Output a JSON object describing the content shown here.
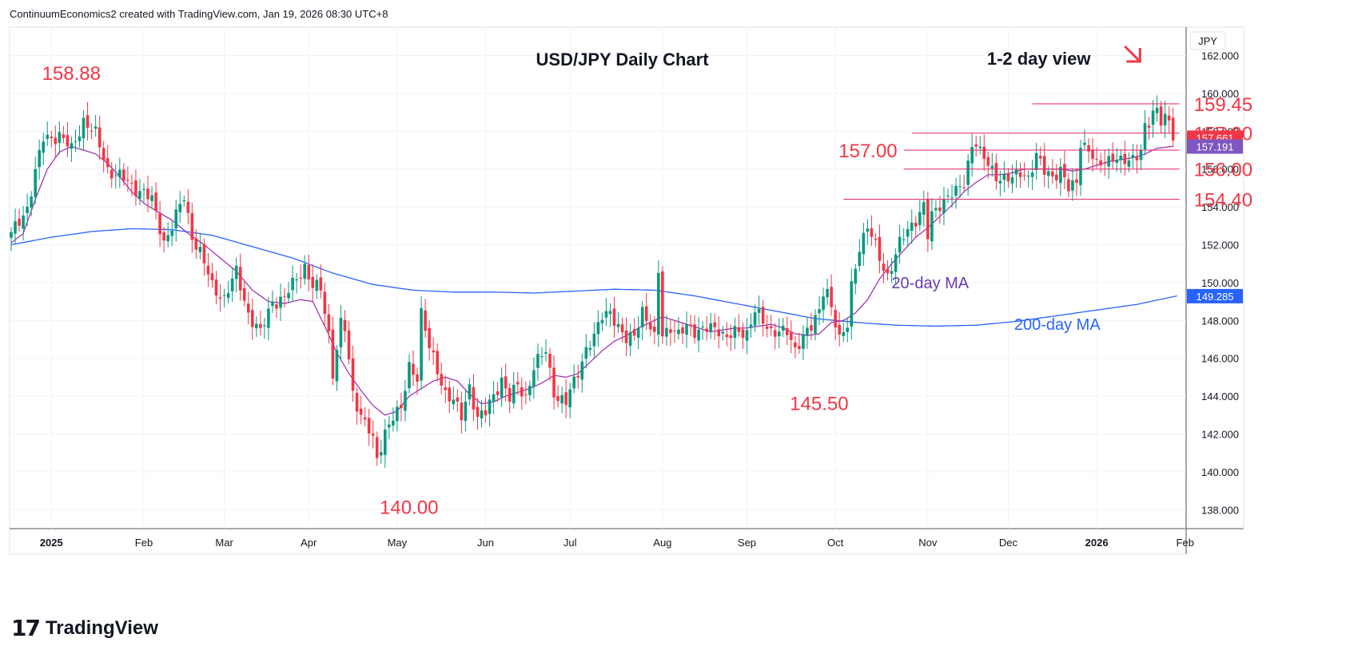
{
  "header": {
    "text": "ContinuumEconomics2 created with TradingView.com, Jan 19, 2026 08:30 UTC+8"
  },
  "branding": {
    "logo_text": "TradingView",
    "logo_icon": "tradingview-logo-icon"
  },
  "chart_data": {
    "type": "candlestick",
    "title": "USD/JPY Daily Chart",
    "view_label": "1-2 day view",
    "view_arrow": "arrow-down-right-icon",
    "currency": "JPY",
    "colors": {
      "up": "#089981",
      "down": "#f23645",
      "ma20": "#9c27b0",
      "ma200": "#2962ff",
      "annotation": "#f23645",
      "ma20_label": "#673ab7",
      "ma200_label": "#2962ff",
      "last_price_bg": "#f23645",
      "ma20_badge_bg": "#7e57c2",
      "ma200_badge_bg": "#2962ff"
    },
    "y_axis": {
      "min": 137,
      "max": 163.5,
      "ticks": [
        "162.000",
        "160.000",
        "158.000",
        "156.000",
        "154.000",
        "152.000",
        "150.000",
        "148.000",
        "146.000",
        "144.000",
        "142.000",
        "140.000",
        "138.000"
      ]
    },
    "x_axis": {
      "labels": [
        {
          "text": "2025",
          "bold": true,
          "idx": 10
        },
        {
          "text": "Feb",
          "bold": false,
          "idx": 33
        },
        {
          "text": "Mar",
          "bold": false,
          "idx": 53
        },
        {
          "text": "Apr",
          "bold": false,
          "idx": 74
        },
        {
          "text": "May",
          "bold": false,
          "idx": 96
        },
        {
          "text": "Jun",
          "bold": false,
          "idx": 118
        },
        {
          "text": "Jul",
          "bold": false,
          "idx": 139
        },
        {
          "text": "Aug",
          "bold": false,
          "idx": 162
        },
        {
          "text": "Sep",
          "bold": false,
          "idx": 183
        },
        {
          "text": "Oct",
          "bold": false,
          "idx": 205
        },
        {
          "text": "Nov",
          "bold": false,
          "idx": 228
        },
        {
          "text": "Dec",
          "bold": false,
          "idx": 248
        },
        {
          "text": "2026",
          "bold": true,
          "idx": 270
        },
        {
          "text": "Feb",
          "bold": false,
          "idx": 292
        }
      ],
      "bars_total": 305
    },
    "anchors": [
      [
        0,
        152.5
      ],
      [
        4,
        154.0
      ],
      [
        8,
        157.6
      ],
      [
        12,
        157.8
      ],
      [
        15,
        157.0
      ],
      [
        18,
        158.6
      ],
      [
        21,
        157.8
      ],
      [
        24,
        156.0
      ],
      [
        27,
        155.6
      ],
      [
        30,
        155.1
      ],
      [
        33,
        154.8
      ],
      [
        35,
        154.3
      ],
      [
        38,
        152.2
      ],
      [
        40,
        153.0
      ],
      [
        43,
        154.5
      ],
      [
        45,
        152.5
      ],
      [
        47,
        151.6
      ],
      [
        50,
        149.8
      ],
      [
        53,
        149.2
      ],
      [
        56,
        150.5
      ],
      [
        59,
        148.4
      ],
      [
        62,
        147.3
      ],
      [
        65,
        149.0
      ],
      [
        68,
        149.2
      ],
      [
        71,
        150.2
      ],
      [
        73,
        150.9
      ],
      [
        75,
        149.8
      ],
      [
        77,
        149.6
      ],
      [
        79,
        147.3
      ],
      [
        80,
        145.3
      ],
      [
        82,
        147.8
      ],
      [
        83,
        147.5
      ],
      [
        85,
        144.1
      ],
      [
        87,
        143.1
      ],
      [
        89,
        142.2
      ],
      [
        90,
        141.6
      ],
      [
        91,
        140.5
      ],
      [
        93,
        142.2
      ],
      [
        95,
        143.0
      ],
      [
        97,
        143.2
      ],
      [
        99,
        145.6
      ],
      [
        101,
        145.1
      ],
      [
        102,
        148.4
      ],
      [
        104,
        146.5
      ],
      [
        106,
        145.4
      ],
      [
        108,
        144.2
      ],
      [
        110,
        143.7
      ],
      [
        112,
        142.9
      ],
      [
        114,
        144.6
      ],
      [
        116,
        142.8
      ],
      [
        118,
        143.1
      ],
      [
        120,
        144.1
      ],
      [
        122,
        144.9
      ],
      [
        124,
        143.8
      ],
      [
        126,
        144.6
      ],
      [
        128,
        144.0
      ],
      [
        130,
        145.5
      ],
      [
        133,
        146.4
      ],
      [
        135,
        144.3
      ],
      [
        136,
        143.9
      ],
      [
        138,
        143.6
      ],
      [
        140,
        144.8
      ],
      [
        143,
        146.5
      ],
      [
        145,
        147.0
      ],
      [
        147,
        148.3
      ],
      [
        149,
        148.6
      ],
      [
        151,
        147.5
      ],
      [
        153,
        146.9
      ],
      [
        155,
        147.4
      ],
      [
        157,
        148.5
      ],
      [
        160,
        147.0
      ],
      [
        161,
        150.7
      ],
      [
        162,
        147.4
      ],
      [
        164,
        147.6
      ],
      [
        166,
        147.1
      ],
      [
        168,
        147.8
      ],
      [
        170,
        147.5
      ],
      [
        172,
        147.4
      ],
      [
        174,
        147.6
      ],
      [
        176,
        147.6
      ],
      [
        178,
        147.1
      ],
      [
        180,
        147.3
      ],
      [
        183,
        147.4
      ],
      [
        185,
        148.6
      ],
      [
        187,
        147.8
      ],
      [
        189,
        147.4
      ],
      [
        191,
        147.6
      ],
      [
        193,
        147.3
      ],
      [
        195,
        146.3
      ],
      [
        197,
        147.4
      ],
      [
        199,
        147.7
      ],
      [
        201,
        148.3
      ],
      [
        202,
        149.5
      ],
      [
        203,
        149.6
      ],
      [
        205,
        148.0
      ],
      [
        206,
        147.0
      ],
      [
        207,
        147.2
      ],
      [
        208,
        147.7
      ],
      [
        209,
        149.8
      ],
      [
        211,
        152.0
      ],
      [
        213,
        152.9
      ],
      [
        214,
        152.4
      ],
      [
        216,
        151.3
      ],
      [
        218,
        150.4
      ],
      [
        219,
        150.9
      ],
      [
        221,
        152.0
      ],
      [
        223,
        152.8
      ],
      [
        225,
        153.4
      ],
      [
        227,
        154.0
      ],
      [
        228,
        152.4
      ],
      [
        229,
        153.5
      ],
      [
        231,
        154.2
      ],
      [
        233,
        154.6
      ],
      [
        235,
        154.7
      ],
      [
        237,
        155.3
      ],
      [
        239,
        157.4
      ],
      [
        240,
        157.4
      ],
      [
        241,
        156.8
      ],
      [
        243,
        156.2
      ],
      [
        245,
        155.7
      ],
      [
        247,
        155.5
      ],
      [
        249,
        155.4
      ],
      [
        251,
        155.9
      ],
      [
        253,
        155.6
      ],
      [
        255,
        156.6
      ],
      [
        257,
        155.9
      ],
      [
        259,
        155.7
      ],
      [
        261,
        155.9
      ],
      [
        263,
        154.9
      ],
      [
        264,
        155.1
      ],
      [
        265,
        155.4
      ],
      [
        266,
        157.5
      ],
      [
        268,
        157.0
      ],
      [
        270,
        156.1
      ],
      [
        272,
        156.5
      ],
      [
        274,
        156.7
      ],
      [
        276,
        156.3
      ],
      [
        278,
        156.4
      ],
      [
        280,
        156.9
      ],
      [
        281,
        157.0
      ],
      [
        282,
        158.2
      ],
      [
        283,
        158.3
      ],
      [
        284,
        158.8
      ],
      [
        285,
        159.1
      ],
      [
        286,
        158.7
      ],
      [
        287,
        158.9
      ],
      [
        288,
        158.6
      ],
      [
        289,
        157.7
      ]
    ],
    "ma20_anchors": [
      [
        0,
        152.1
      ],
      [
        3,
        152.6
      ],
      [
        6,
        154.4
      ],
      [
        9,
        156.0
      ],
      [
        12,
        156.9
      ],
      [
        15,
        157.2
      ],
      [
        18,
        157.0
      ],
      [
        21,
        156.8
      ],
      [
        24,
        156.3
      ],
      [
        27,
        155.6
      ],
      [
        30,
        154.8
      ],
      [
        33,
        154.2
      ],
      [
        36,
        153.8
      ],
      [
        40,
        153.3
      ],
      [
        44,
        152.6
      ],
      [
        48,
        152.0
      ],
      [
        52,
        151.3
      ],
      [
        56,
        150.6
      ],
      [
        60,
        149.6
      ],
      [
        64,
        149.0
      ],
      [
        68,
        148.9
      ],
      [
        72,
        149.1
      ],
      [
        75,
        149.0
      ],
      [
        78,
        147.7
      ],
      [
        81,
        146.3
      ],
      [
        84,
        145.2
      ],
      [
        87,
        144.3
      ],
      [
        90,
        143.5
      ],
      [
        93,
        143.0
      ],
      [
        96,
        143.2
      ],
      [
        99,
        144.0
      ],
      [
        102,
        144.4
      ],
      [
        105,
        144.8
      ],
      [
        108,
        145.0
      ],
      [
        111,
        144.8
      ],
      [
        114,
        144.1
      ],
      [
        117,
        143.6
      ],
      [
        120,
        143.7
      ],
      [
        123,
        144.0
      ],
      [
        126,
        144.2
      ],
      [
        129,
        144.4
      ],
      [
        132,
        144.7
      ],
      [
        135,
        145.1
      ],
      [
        138,
        145.0
      ],
      [
        141,
        145.2
      ],
      [
        144,
        145.8
      ],
      [
        147,
        146.4
      ],
      [
        150,
        146.9
      ],
      [
        153,
        147.2
      ],
      [
        156,
        147.6
      ],
      [
        159,
        147.9
      ],
      [
        162,
        148.2
      ],
      [
        165,
        148.0
      ],
      [
        168,
        147.8
      ],
      [
        171,
        147.6
      ],
      [
        174,
        147.4
      ],
      [
        177,
        147.5
      ],
      [
        180,
        147.6
      ],
      [
        183,
        147.6
      ],
      [
        186,
        147.7
      ],
      [
        189,
        147.8
      ],
      [
        192,
        147.6
      ],
      [
        195,
        147.3
      ],
      [
        198,
        147.2
      ],
      [
        201,
        147.3
      ],
      [
        204,
        147.9
      ],
      [
        207,
        148.0
      ],
      [
        210,
        148.4
      ],
      [
        213,
        149.1
      ],
      [
        216,
        150.2
      ],
      [
        219,
        151.0
      ],
      [
        222,
        151.7
      ],
      [
        225,
        152.4
      ],
      [
        228,
        152.9
      ],
      [
        231,
        153.5
      ],
      [
        234,
        154.1
      ],
      [
        237,
        154.8
      ],
      [
        240,
        155.3
      ],
      [
        243,
        155.7
      ],
      [
        246,
        155.7
      ],
      [
        249,
        155.8
      ],
      [
        252,
        156.0
      ],
      [
        255,
        156.0
      ],
      [
        258,
        156.0
      ],
      [
        261,
        156.0
      ],
      [
        264,
        155.9
      ],
      [
        267,
        156.0
      ],
      [
        270,
        156.2
      ],
      [
        273,
        156.4
      ],
      [
        276,
        156.5
      ],
      [
        279,
        156.6
      ],
      [
        282,
        156.8
      ],
      [
        285,
        157.1
      ],
      [
        289,
        157.2
      ]
    ],
    "ma200_anchors": [
      [
        0,
        152.0
      ],
      [
        10,
        152.4
      ],
      [
        20,
        152.7
      ],
      [
        30,
        152.85
      ],
      [
        40,
        152.8
      ],
      [
        50,
        152.5
      ],
      [
        60,
        151.9
      ],
      [
        70,
        151.3
      ],
      [
        80,
        150.5
      ],
      [
        90,
        149.9
      ],
      [
        100,
        149.6
      ],
      [
        110,
        149.5
      ],
      [
        120,
        149.5
      ],
      [
        130,
        149.45
      ],
      [
        140,
        149.55
      ],
      [
        150,
        149.65
      ],
      [
        160,
        149.6
      ],
      [
        170,
        149.3
      ],
      [
        180,
        148.9
      ],
      [
        190,
        148.5
      ],
      [
        200,
        148.1
      ],
      [
        210,
        147.9
      ],
      [
        220,
        147.75
      ],
      [
        230,
        147.7
      ],
      [
        240,
        147.75
      ],
      [
        250,
        147.95
      ],
      [
        260,
        148.25
      ],
      [
        270,
        148.55
      ],
      [
        280,
        148.85
      ],
      [
        290,
        149.3
      ]
    ],
    "levels": [
      {
        "label": "159.45",
        "value": 159.45,
        "from_idx": 254
      },
      {
        "label": "157.90",
        "value": 157.9,
        "from_idx": 224
      },
      {
        "label": "157.00",
        "value": 157.0,
        "from_idx": 222,
        "label_left": true
      },
      {
        "label": "156.00",
        "value": 156.0,
        "from_idx": 222
      },
      {
        "label": "154.40",
        "value": 154.4,
        "from_idx": 207
      }
    ],
    "price_annotations": [
      {
        "label": "158.88",
        "idx": 9,
        "value": 161.1
      },
      {
        "label": "140.00",
        "idx": 93,
        "value": 138.15
      },
      {
        "label": "145.50",
        "idx": 195,
        "value": 143.65
      }
    ],
    "ma_labels": {
      "ma20": "20-day MA",
      "ma200": "200-day MA"
    },
    "price_badges": [
      {
        "value": 157.661,
        "text": "157.661",
        "kind": "last"
      },
      {
        "value": 157.191,
        "text": "157.191",
        "kind": "ma20"
      },
      {
        "value": 149.285,
        "text": "149.285",
        "kind": "ma200"
      }
    ]
  }
}
